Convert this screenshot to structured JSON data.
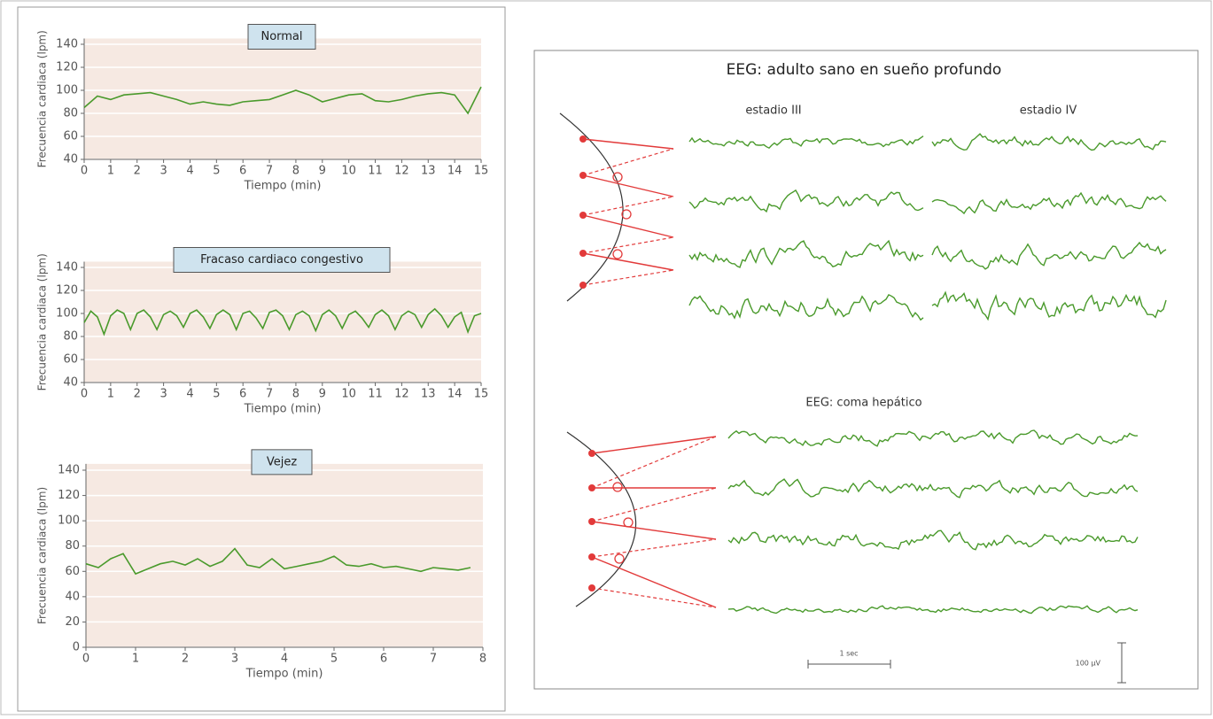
{
  "chart_data": [
    {
      "type": "line",
      "title": "Normal",
      "xlabel": "Tiempo (min)",
      "ylabel": "Frecuencia cardiaca (lpm)",
      "color": "#4a9a2c",
      "grid": true,
      "x": [
        0,
        0.5,
        1,
        1.5,
        2,
        2.5,
        3,
        3.5,
        4,
        4.5,
        5,
        5.5,
        6,
        6.5,
        7,
        7.5,
        8,
        8.5,
        9,
        9.5,
        10,
        10.5,
        11,
        11.5,
        12,
        12.5,
        13,
        13.5,
        14,
        14.5,
        15
      ],
      "values": [
        85,
        95,
        92,
        96,
        97,
        98,
        95,
        92,
        88,
        90,
        88,
        87,
        90,
        91,
        92,
        96,
        100,
        96,
        90,
        93,
        96,
        97,
        91,
        90,
        92,
        95,
        97,
        98,
        96,
        80,
        103
      ],
      "xlim": [
        0,
        15
      ],
      "xticks": [
        0,
        1,
        2,
        3,
        4,
        5,
        6,
        7,
        8,
        9,
        10,
        11,
        12,
        13,
        14,
        15
      ],
      "ylim": [
        40,
        145
      ],
      "yticks": [
        40,
        60,
        80,
        100,
        120,
        140
      ]
    },
    {
      "type": "line",
      "title": "Fracaso cardiaco congestivo",
      "xlabel": "Tiempo (min)",
      "ylabel": "Frecuencia cardiaca (lpm)",
      "color": "#4a9a2c",
      "grid": true,
      "x": [
        0,
        0.25,
        0.5,
        0.75,
        1,
        1.25,
        1.5,
        1.75,
        2,
        2.25,
        2.5,
        2.75,
        3,
        3.25,
        3.5,
        3.75,
        4,
        4.25,
        4.5,
        4.75,
        5,
        5.25,
        5.5,
        5.75,
        6,
        6.25,
        6.5,
        6.75,
        7,
        7.25,
        7.5,
        7.75,
        8,
        8.25,
        8.5,
        8.75,
        9,
        9.25,
        9.5,
        9.75,
        10,
        10.25,
        10.5,
        10.75,
        11,
        11.25,
        11.5,
        11.75,
        12,
        12.25,
        12.5,
        12.75,
        13,
        13.25,
        13.5,
        13.75,
        14,
        14.25,
        14.5,
        14.75,
        15
      ],
      "values": [
        92,
        102,
        97,
        82,
        98,
        103,
        100,
        86,
        100,
        103,
        97,
        86,
        99,
        102,
        98,
        88,
        100,
        103,
        97,
        87,
        99,
        103,
        99,
        86,
        100,
        102,
        96,
        87,
        101,
        103,
        98,
        86,
        99,
        102,
        98,
        85,
        99,
        103,
        98,
        87,
        99,
        102,
        96,
        88,
        99,
        103,
        98,
        86,
        98,
        102,
        99,
        88,
        99,
        104,
        98,
        88,
        97,
        101,
        84,
        98,
        100
      ],
      "xlim": [
        0,
        15
      ],
      "xticks": [
        0,
        1,
        2,
        3,
        4,
        5,
        6,
        7,
        8,
        9,
        10,
        11,
        12,
        13,
        14,
        15
      ],
      "ylim": [
        40,
        145
      ],
      "yticks": [
        40,
        60,
        80,
        100,
        120,
        140
      ]
    },
    {
      "type": "line",
      "title": "Vejez",
      "xlabel": "Tiempo (min)",
      "ylabel": "Frecuencia cardiaca (lpm)",
      "color": "#4a9a2c",
      "grid": true,
      "x": [
        0,
        0.25,
        0.5,
        0.75,
        1,
        1.25,
        1.5,
        1.75,
        2,
        2.25,
        2.5,
        2.75,
        3,
        3.25,
        3.5,
        3.75,
        4,
        4.25,
        4.5,
        4.75,
        5,
        5.25,
        5.5,
        5.75,
        6,
        6.25,
        6.5,
        6.75,
        7,
        7.25,
        7.5,
        7.75
      ],
      "values": [
        66,
        63,
        70,
        74,
        58,
        62,
        66,
        68,
        65,
        70,
        64,
        68,
        78,
        65,
        63,
        70,
        62,
        64,
        66,
        68,
        72,
        65,
        64,
        66,
        63,
        64,
        62,
        60,
        63,
        62,
        61,
        63
      ],
      "xlim": [
        0,
        8
      ],
      "xticks": [
        0,
        1,
        2,
        3,
        4,
        5,
        6,
        7,
        8
      ],
      "ylim": [
        0,
        145
      ],
      "yticks": [
        0,
        20,
        40,
        60,
        80,
        100,
        120,
        140
      ]
    }
  ],
  "eeg": {
    "title": "EEG: adulto sano en sueño profundo",
    "stage_3": "estadio III",
    "stage_4": "estadio IV",
    "coma_title": "EEG:  coma hepático",
    "time_scale": "1 sec",
    "voltage_scale": "100 µV"
  }
}
